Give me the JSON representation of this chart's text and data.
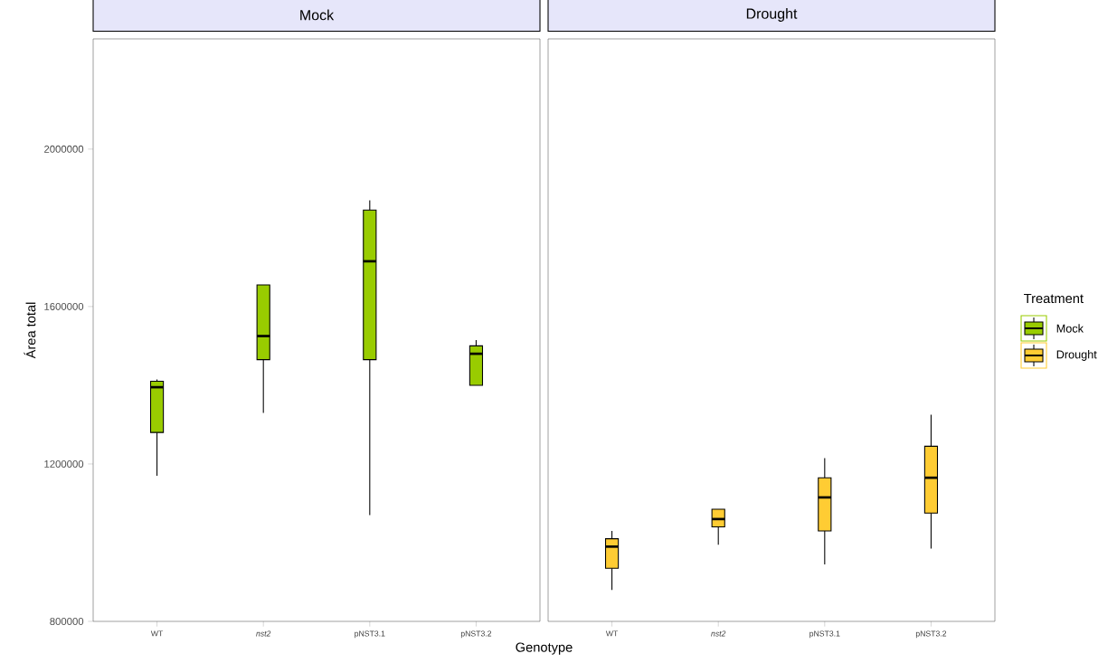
{
  "chart_data": [
    {
      "type": "box",
      "title": "Mock",
      "xlabel": "Genotype",
      "ylabel": "Área total",
      "categories": [
        "WT",
        "*nst2*",
        "pNST3.1",
        "pNST3.2"
      ],
      "ylim": [
        800000,
        2280000
      ],
      "yticks": [
        800000,
        1200000,
        1600000,
        2000000
      ],
      "grid": false,
      "legend": "right",
      "series": [
        {
          "name": "Mock",
          "color": "#99cc00",
          "boxes": [
            {
              "low": 1170000,
              "q1": 1280000,
              "median": 1395000,
              "q3": 1410000,
              "high": 1415000
            },
            {
              "low": 1330000,
              "q1": 1465000,
              "median": 1525000,
              "q3": 1655000,
              "high": 1655000
            },
            {
              "low": 1070000,
              "q1": 1465000,
              "median": 1715000,
              "q3": 1845000,
              "high": 1870000
            },
            {
              "low": 1400000,
              "q1": 1400000,
              "median": 1480000,
              "q3": 1500000,
              "high": 1515000
            }
          ]
        }
      ]
    },
    {
      "type": "box",
      "title": "Drought",
      "categories": [
        "WT",
        "*nst2*",
        "pNST3.1",
        "pNST3.2"
      ],
      "ylim": [
        800000,
        2280000
      ],
      "tick_labels": "x",
      "grid": false,
      "legend": "right",
      "legend_title": "Treatment",
      "series": [
        {
          "name": "Drought",
          "color": "#ffcc33",
          "boxes": [
            {
              "low": 880000,
              "q1": 935000,
              "median": 990000,
              "q3": 1010000,
              "high": 1030000
            },
            {
              "low": 995000,
              "q1": 1040000,
              "median": 1060000,
              "q3": 1085000,
              "high": 1085000
            },
            {
              "low": 945000,
              "q1": 1030000,
              "median": 1115000,
              "q3": 1165000,
              "high": 1215000
            },
            {
              "low": 985000,
              "q1": 1075000,
              "median": 1165000,
              "q3": 1245000,
              "high": 1325000
            }
          ]
        }
      ]
    }
  ]
}
